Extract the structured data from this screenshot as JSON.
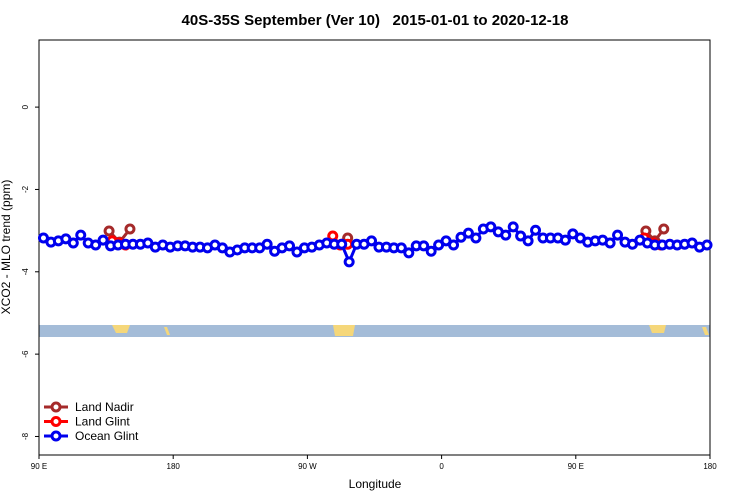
{
  "chart_data": {
    "type": "line",
    "title": "40S-35S September (Ver 10)   2015-01-01 to 2020-12-18",
    "x_label": "Longitude",
    "y_label": "XCO2 - MLO trend (ppm)",
    "xlim": [
      90,
      540
    ],
    "ylim": [
      -8.45,
      1.63
    ],
    "xticks": [
      {
        "value": 90,
        "label": "90 E"
      },
      180,
      {
        "value": 270,
        "label": "90 W"
      },
      {
        "value": 360,
        "label": "0"
      },
      {
        "value": 450,
        "label": "90 E"
      },
      {
        "value": 540,
        "label": "180"
      }
    ],
    "yticks": [
      0,
      -2,
      -4,
      -6,
      -8
    ],
    "legend": "bottom-left",
    "series": [
      {
        "name": "Land Nadir",
        "color": "#a52a2a",
        "x": [
          137,
          144,
          151,
          null,
          293,
          297,
          null,
          497,
          503,
          509
        ],
        "values": [
          -3.01,
          -3.28,
          -2.96,
          null,
          -3.33,
          -3.18,
          null,
          -3.01,
          -3.25,
          -2.96
        ]
      },
      {
        "name": "Land Glint",
        "color": "#ff0000",
        "x": [
          139,
          144,
          148,
          null,
          287,
          292,
          297,
          null,
          496,
          502,
          507
        ],
        "values": [
          -3.25,
          -3.3,
          -3.35,
          null,
          -3.13,
          -3.35,
          -3.33,
          null,
          -3.18,
          -3.3,
          -3.35
        ]
      },
      {
        "name": "Ocean Glint",
        "color": "#0000ee",
        "x": [
          93,
          98,
          103,
          108,
          113,
          118,
          123,
          128,
          133,
          138,
          143,
          148,
          153,
          158,
          163,
          168,
          173,
          178,
          183,
          188,
          193,
          198,
          203,
          208,
          213,
          218,
          223,
          228,
          233,
          238,
          243,
          248,
          253,
          258,
          263,
          268,
          273,
          278,
          283,
          288,
          293,
          298,
          303,
          308,
          313,
          318,
          323,
          328,
          333,
          338,
          343,
          348,
          353,
          358,
          363,
          368,
          373,
          378,
          383,
          388,
          393,
          398,
          403,
          408,
          413,
          418,
          423,
          428,
          433,
          438,
          443,
          448,
          453,
          458,
          463,
          468,
          473,
          478,
          483,
          488,
          493,
          498,
          503,
          508,
          513,
          518,
          523,
          528,
          533,
          538
        ],
        "values": [
          -3.18,
          -3.28,
          -3.25,
          -3.2,
          -3.3,
          -3.11,
          -3.3,
          -3.35,
          -3.23,
          -3.37,
          -3.35,
          -3.33,
          -3.33,
          -3.33,
          -3.3,
          -3.4,
          -3.35,
          -3.4,
          -3.37,
          -3.37,
          -3.4,
          -3.4,
          -3.42,
          -3.35,
          -3.42,
          -3.52,
          -3.47,
          -3.42,
          -3.42,
          -3.42,
          -3.33,
          -3.5,
          -3.42,
          -3.37,
          -3.52,
          -3.42,
          -3.4,
          -3.35,
          -3.3,
          -3.33,
          -3.33,
          -3.76,
          -3.33,
          -3.33,
          -3.25,
          -3.4,
          -3.4,
          -3.42,
          -3.42,
          -3.54,
          -3.37,
          -3.37,
          -3.5,
          -3.35,
          -3.25,
          -3.35,
          -3.16,
          -3.06,
          -3.18,
          -2.96,
          -2.91,
          -3.03,
          -3.11,
          -2.91,
          -3.13,
          -3.25,
          -2.99,
          -3.18,
          -3.18,
          -3.18,
          -3.23,
          -3.08,
          -3.18,
          -3.28,
          -3.25,
          -3.23,
          -3.3,
          -3.11,
          -3.28,
          -3.33,
          -3.23,
          -3.3,
          -3.35,
          -3.35,
          -3.33,
          -3.35,
          -3.33,
          -3.3,
          -3.4,
          -3.35
        ]
      }
    ]
  }
}
